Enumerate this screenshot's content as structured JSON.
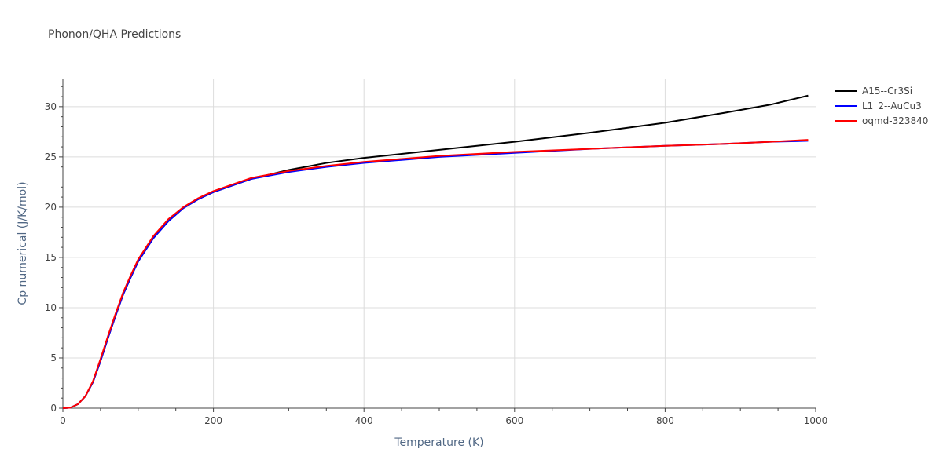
{
  "chart_data": {
    "type": "line",
    "title": "Phonon/QHA Predictions",
    "xlabel": "Temperature (K)",
    "ylabel": "Cp numerical (J/K/mol)",
    "xlim": [
      0,
      1000
    ],
    "ylim": [
      0,
      32.8
    ],
    "xticks": [
      "0",
      "200",
      "400",
      "600",
      "800",
      "1000"
    ],
    "yticks": [
      "0",
      "5",
      "10",
      "15",
      "20",
      "25",
      "30"
    ],
    "grid": true,
    "legend_position": "top-right",
    "series": [
      {
        "name": "A15--Cr3Si",
        "color": "#000000",
        "x": [
          0,
          10,
          20,
          30,
          40,
          50,
          60,
          70,
          80,
          90,
          100,
          120,
          140,
          160,
          180,
          200,
          250,
          300,
          350,
          400,
          450,
          500,
          600,
          700,
          800,
          880,
          940,
          990
        ],
        "y": [
          0,
          0.05,
          0.4,
          1.2,
          2.6,
          4.7,
          7.0,
          9.2,
          11.3,
          13.0,
          14.6,
          16.9,
          18.6,
          19.9,
          20.8,
          21.5,
          22.8,
          23.7,
          24.4,
          24.9,
          25.3,
          25.7,
          26.5,
          27.4,
          28.4,
          29.4,
          30.2,
          31.1
        ]
      },
      {
        "name": "L1_2--AuCu3",
        "color": "#0000ff",
        "x": [
          0,
          10,
          20,
          30,
          40,
          50,
          60,
          70,
          80,
          90,
          100,
          120,
          140,
          160,
          180,
          200,
          250,
          300,
          350,
          400,
          450,
          500,
          600,
          700,
          800,
          880,
          940,
          990
        ],
        "y": [
          0,
          0.05,
          0.4,
          1.2,
          2.6,
          4.7,
          7.0,
          9.2,
          11.3,
          13.0,
          14.6,
          16.9,
          18.6,
          19.9,
          20.8,
          21.5,
          22.8,
          23.5,
          24.0,
          24.4,
          24.7,
          25.0,
          25.4,
          25.8,
          26.1,
          26.3,
          26.5,
          26.6
        ]
      },
      {
        "name": "oqmd-323840",
        "color": "#ff0000",
        "x": [
          0,
          10,
          20,
          30,
          40,
          50,
          60,
          70,
          80,
          90,
          100,
          120,
          140,
          160,
          180,
          200,
          250,
          300,
          350,
          400,
          450,
          500,
          600,
          700,
          800,
          880,
          940,
          990
        ],
        "y": [
          0,
          0.05,
          0.4,
          1.2,
          2.7,
          4.9,
          7.2,
          9.4,
          11.5,
          13.2,
          14.8,
          17.1,
          18.8,
          20.0,
          20.9,
          21.6,
          22.9,
          23.6,
          24.1,
          24.5,
          24.8,
          25.1,
          25.5,
          25.8,
          26.1,
          26.3,
          26.5,
          26.7
        ]
      }
    ]
  }
}
